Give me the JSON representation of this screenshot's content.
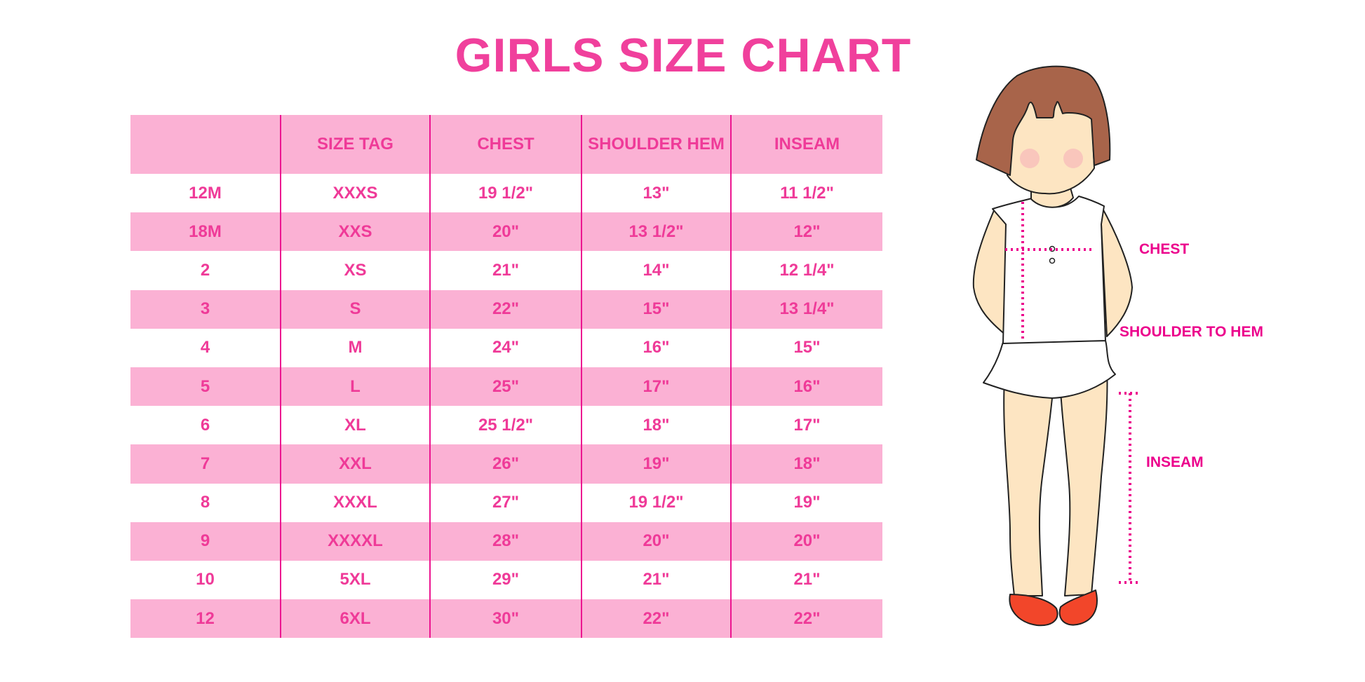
{
  "title": "GIRLS SIZE CHART",
  "table": {
    "headers": [
      "",
      "SIZE TAG",
      "CHEST",
      "SHOULDER HEM",
      "INSEAM"
    ],
    "rows": [
      [
        "12M",
        "XXXS",
        "19 1/2\"",
        "13\"",
        "11 1/2\""
      ],
      [
        "18M",
        "XXS",
        "20\"",
        "13 1/2\"",
        "12\""
      ],
      [
        "2",
        "XS",
        "21\"",
        "14\"",
        "12 1/4\""
      ],
      [
        "3",
        "S",
        "22\"",
        "15\"",
        "13 1/4\""
      ],
      [
        "4",
        "M",
        "24\"",
        "16\"",
        "15\""
      ],
      [
        "5",
        "L",
        "25\"",
        "17\"",
        "16\""
      ],
      [
        "6",
        "XL",
        "25 1/2\"",
        "18\"",
        "17\""
      ],
      [
        "7",
        "XXL",
        "26\"",
        "19\"",
        "18\""
      ],
      [
        "8",
        "XXXL",
        "27\"",
        "19 1/2\"",
        "19\""
      ],
      [
        "9",
        "XXXXL",
        "28\"",
        "20\"",
        "20\""
      ],
      [
        "10",
        "5XL",
        "29\"",
        "21\"",
        "21\""
      ],
      [
        "12",
        "6XL",
        "30\"",
        "22\"",
        "22\""
      ]
    ]
  },
  "figure": {
    "labels": {
      "chest": "CHEST",
      "shoulder": "SHOULDER TO HEM",
      "inseam": "INSEAM"
    }
  },
  "colors": {
    "accent": "#f0409c",
    "row_pink": "#fbb1d4",
    "divider": "#ec1590",
    "measure": "#ec008c"
  }
}
